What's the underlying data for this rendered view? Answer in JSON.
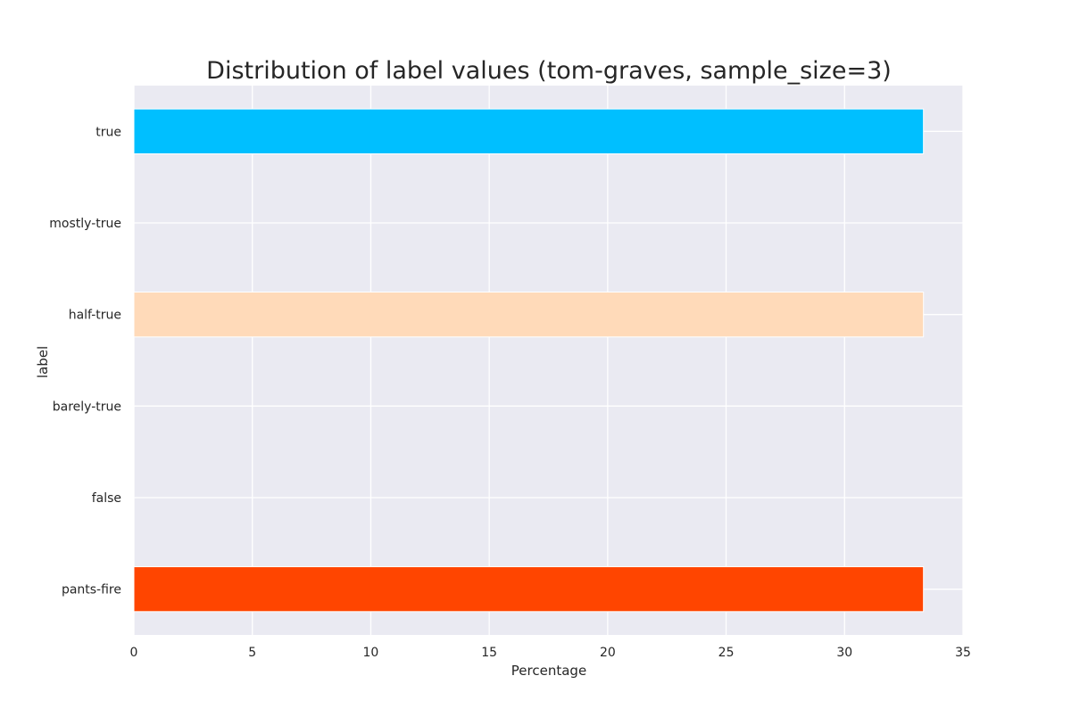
{
  "chart_data": {
    "type": "bar",
    "orientation": "horizontal",
    "title": "Distribution of label values (tom-graves, sample_size=3)",
    "xlabel": "Percentage",
    "ylabel": "label",
    "categories": [
      "true",
      "mostly-true",
      "half-true",
      "barely-true",
      "false",
      "pants-fire"
    ],
    "values": [
      33.33,
      0,
      33.33,
      0,
      0,
      33.33
    ],
    "colors": [
      "#00bfff",
      "#7fff00",
      "#ffdab9",
      "#ffa500",
      "#ff6347",
      "#ff4500"
    ],
    "xlim": [
      0,
      35
    ],
    "xticks": [
      0,
      5,
      10,
      15,
      20,
      25,
      30,
      35
    ],
    "grid": true,
    "background": "#eaeaf2",
    "gridColor": "#ffffff"
  }
}
